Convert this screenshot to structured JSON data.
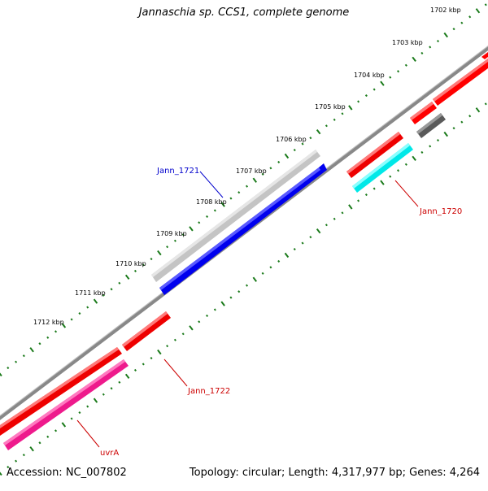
{
  "title": "Jannaschia sp. CCS1, complete genome",
  "footer": {
    "accession": "Accession: NC_007802",
    "summary": "Topology: circular; Length: 4,317,977 bp; Genes: 4,264"
  },
  "colors": {
    "backbone": "#808080",
    "tick": "#1a7a1a",
    "forward_gene": "#ff0000",
    "reverse_gene": "#ff0000",
    "highlight_gene": "#0000ff",
    "highlight_shadow": "#c0c0c0",
    "cyan_gene": "#00ffff",
    "pink_gene": "#ff1493",
    "dark_gene": "#606060",
    "label_blue": "#0000cc",
    "label_red": "#cc0000"
  },
  "kbp_ticks": [
    "1702 kbp",
    "1703 kbp",
    "1704 kbp",
    "1705 kbp",
    "1706 kbp",
    "1707 kbp",
    "1708 kbp",
    "1709 kbp",
    "1710 kbp",
    "1711 kbp",
    "1712 kbp"
  ],
  "gene_labels": {
    "jann_1721": "Jann_1721",
    "jann_1720": "Jann_1720",
    "jann_1722": "Jann_1722",
    "uvra": "uvrA"
  }
}
